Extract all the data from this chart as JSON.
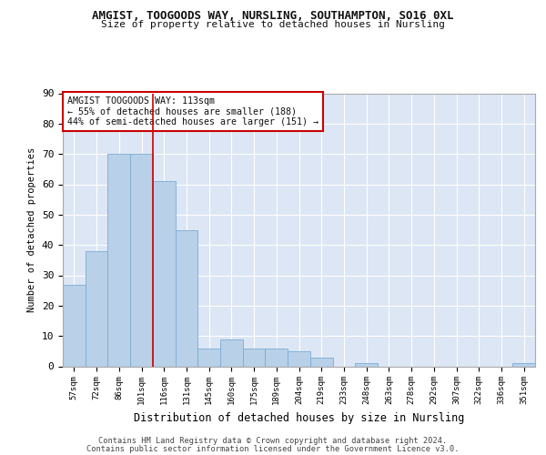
{
  "title1": "AMGIST, TOOGOODS WAY, NURSLING, SOUTHAMPTON, SO16 0XL",
  "title2": "Size of property relative to detached houses in Nursling",
  "xlabel": "Distribution of detached houses by size in Nursling",
  "ylabel": "Number of detached properties",
  "categories": [
    "57sqm",
    "72sqm",
    "86sqm",
    "101sqm",
    "116sqm",
    "131sqm",
    "145sqm",
    "160sqm",
    "175sqm",
    "189sqm",
    "204sqm",
    "219sqm",
    "233sqm",
    "248sqm",
    "263sqm",
    "278sqm",
    "292sqm",
    "307sqm",
    "322sqm",
    "336sqm",
    "351sqm"
  ],
  "values": [
    27,
    38,
    70,
    70,
    61,
    45,
    6,
    9,
    6,
    6,
    5,
    3,
    0,
    1,
    0,
    0,
    0,
    0,
    0,
    0,
    1
  ],
  "bar_color": "#b8d0e8",
  "bar_edge_color": "#7aadd4",
  "background_color": "#dce6f4",
  "grid_color": "#ffffff",
  "vline_x": 3.5,
  "vline_color": "#cc0000",
  "annotation_line1": "AMGIST TOOGOODS WAY: 113sqm",
  "annotation_line2": "← 55% of detached houses are smaller (188)",
  "annotation_line3": "44% of semi-detached houses are larger (151) →",
  "annotation_box_color": "#ffffff",
  "annotation_box_edge_color": "#cc0000",
  "footer_line1": "Contains HM Land Registry data © Crown copyright and database right 2024.",
  "footer_line2": "Contains public sector information licensed under the Government Licence v3.0.",
  "ylim": [
    0,
    90
  ],
  "yticks": [
    0,
    10,
    20,
    30,
    40,
    50,
    60,
    70,
    80,
    90
  ]
}
